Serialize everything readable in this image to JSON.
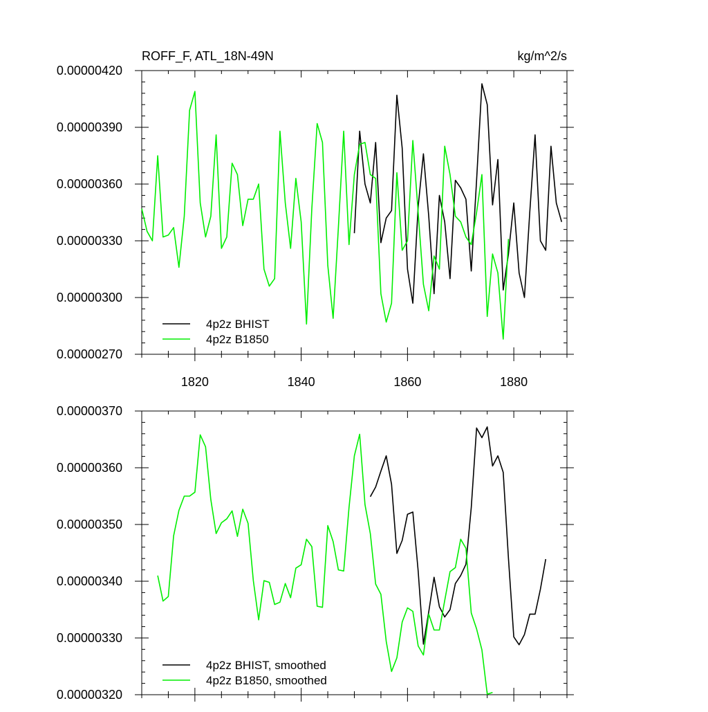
{
  "chart_data": [
    {
      "type": "line",
      "title": "ROFF_F, ATL_18N-49N",
      "title_right": "kg/m^2/s",
      "xlabel": "",
      "ylabel": "",
      "xlim": [
        1810,
        1890
      ],
      "ylim": [
        2.7e-06,
        4.2e-06
      ],
      "xticks": [
        1820,
        1840,
        1860,
        1880
      ],
      "xtick_labels": [
        "1820",
        "1840",
        "1860",
        "1880"
      ],
      "yticks": [
        2.7e-06,
        3e-06,
        3.3e-06,
        3.6e-06,
        3.9e-06,
        4.2e-06
      ],
      "ytick_labels": [
        "0.00000270",
        "0.00000300",
        "0.00000330",
        "0.00000360",
        "0.00000390",
        "0.00000420"
      ],
      "legend": "bottom-left",
      "grid": false,
      "series": [
        {
          "name": "4p2z BHIST",
          "color": "#000000",
          "x": [
            1850,
            1851,
            1852,
            1853,
            1854,
            1855,
            1856,
            1857,
            1858,
            1859,
            1860,
            1861,
            1862,
            1863,
            1864,
            1865,
            1866,
            1867,
            1868,
            1869,
            1870,
            1871,
            1872,
            1873,
            1874,
            1875,
            1876,
            1877,
            1878,
            1879,
            1880,
            1881,
            1882,
            1883,
            1884,
            1885,
            1886,
            1887,
            1888,
            1889
          ],
          "values": [
            3.34e-06,
            3.88e-06,
            3.6e-06,
            3.5e-06,
            3.82e-06,
            3.29e-06,
            3.42e-06,
            3.46e-06,
            4.07e-06,
            3.79e-06,
            3.15e-06,
            2.97e-06,
            3.48e-06,
            3.76e-06,
            3.43e-06,
            3.02e-06,
            3.54e-06,
            3.4e-06,
            3.1e-06,
            3.62e-06,
            3.58e-06,
            3.52e-06,
            3.14e-06,
            3.62e-06,
            4.13e-06,
            4.02e-06,
            3.49e-06,
            3.73e-06,
            3.04e-06,
            3.23e-06,
            3.5e-06,
            3.13e-06,
            3e-06,
            3.45e-06,
            3.86e-06,
            3.3e-06,
            3.25e-06,
            3.8e-06,
            3.5e-06,
            3.4e-06
          ]
        },
        {
          "name": "4p2z B1850",
          "color": "#00ee00",
          "x": [
            1810,
            1811,
            1812,
            1813,
            1814,
            1815,
            1816,
            1817,
            1818,
            1819,
            1820,
            1821,
            1822,
            1823,
            1824,
            1825,
            1826,
            1827,
            1828,
            1829,
            1830,
            1831,
            1832,
            1833,
            1834,
            1835,
            1836,
            1837,
            1838,
            1839,
            1840,
            1841,
            1842,
            1843,
            1844,
            1845,
            1846,
            1847,
            1848,
            1849,
            1850,
            1851,
            1852,
            1853,
            1854,
            1855,
            1856,
            1857,
            1858,
            1859,
            1860,
            1861,
            1862,
            1863,
            1864,
            1865,
            1866,
            1867,
            1868,
            1869,
            1870,
            1871,
            1872,
            1873,
            1874,
            1875,
            1876,
            1877,
            1878,
            1879
          ],
          "values": [
            3.47e-06,
            3.35e-06,
            3.3e-06,
            3.75e-06,
            3.32e-06,
            3.33e-06,
            3.37e-06,
            3.16e-06,
            3.43e-06,
            3.99e-06,
            4.09e-06,
            3.5e-06,
            3.32e-06,
            3.43e-06,
            3.86e-06,
            3.26e-06,
            3.32e-06,
            3.71e-06,
            3.65e-06,
            3.38e-06,
            3.52e-06,
            3.52e-06,
            3.6e-06,
            3.15e-06,
            3.06e-06,
            3.1e-06,
            3.88e-06,
            3.5e-06,
            3.26e-06,
            3.63e-06,
            3.4e-06,
            2.86e-06,
            3.47e-06,
            3.92e-06,
            3.82e-06,
            3.17e-06,
            2.89e-06,
            3.37e-06,
            3.88e-06,
            3.28e-06,
            3.65e-06,
            3.81e-06,
            3.82e-06,
            3.65e-06,
            3.63e-06,
            3.02e-06,
            2.87e-06,
            2.97e-06,
            3.66e-06,
            3.25e-06,
            3.3e-06,
            3.83e-06,
            3.45e-06,
            3.07e-06,
            2.93e-06,
            3.22e-06,
            3.15e-06,
            3.8e-06,
            3.65e-06,
            3.43e-06,
            3.4e-06,
            3.32e-06,
            3.28e-06,
            3.45e-06,
            3.65e-06,
            2.9e-06,
            3.23e-06,
            3.13e-06,
            2.78e-06,
            3.31e-06
          ]
        }
      ]
    },
    {
      "type": "line",
      "title": "",
      "xlabel": "",
      "ylabel": "",
      "xlim": [
        1810,
        1890
      ],
      "ylim": [
        3.2e-06,
        3.7e-06
      ],
      "yticks": [
        3.2e-06,
        3.3e-06,
        3.4e-06,
        3.5e-06,
        3.6e-06,
        3.7e-06
      ],
      "ytick_labels": [
        "0.00000320",
        "0.00000330",
        "0.00000340",
        "0.00000350",
        "0.00000360",
        "0.00000370"
      ],
      "legend": "bottom-left",
      "grid": false,
      "series": [
        {
          "name": "4p2z BHIST, smoothed",
          "color": "#000000",
          "x": [
            1853,
            1854,
            1855,
            1856,
            1857,
            1858,
            1859,
            1860,
            1861,
            1862,
            1863,
            1864,
            1865,
            1866,
            1867,
            1868,
            1869,
            1870,
            1871,
            1872,
            1873,
            1874,
            1875,
            1876,
            1877,
            1878,
            1879,
            1880,
            1881,
            1882,
            1883,
            1884,
            1885,
            1886
          ],
          "values": [
            3.549e-06,
            3.566e-06,
            3.594e-06,
            3.621e-06,
            3.571e-06,
            3.449e-06,
            3.472e-06,
            3.518e-06,
            3.522e-06,
            3.418e-06,
            3.289e-06,
            3.346e-06,
            3.407e-06,
            3.355e-06,
            3.337e-06,
            3.35e-06,
            3.396e-06,
            3.41e-06,
            3.43e-06,
            3.53e-06,
            3.67e-06,
            3.653e-06,
            3.672e-06,
            3.603e-06,
            3.621e-06,
            3.592e-06,
            3.44e-06,
            3.302e-06,
            3.288e-06,
            3.306e-06,
            3.342e-06,
            3.342e-06,
            3.386e-06,
            3.439e-06
          ]
        },
        {
          "name": "4p2z B1850, smoothed",
          "color": "#00ee00",
          "x": [
            1813,
            1814,
            1815,
            1816,
            1817,
            1818,
            1819,
            1820,
            1821,
            1822,
            1823,
            1824,
            1825,
            1826,
            1827,
            1828,
            1829,
            1830,
            1831,
            1832,
            1833,
            1834,
            1835,
            1836,
            1837,
            1838,
            1839,
            1840,
            1841,
            1842,
            1843,
            1844,
            1845,
            1846,
            1847,
            1848,
            1849,
            1850,
            1851,
            1852,
            1853,
            1854,
            1855,
            1856,
            1857,
            1858,
            1859,
            1860,
            1861,
            1862,
            1863,
            1864,
            1865,
            1866,
            1867,
            1868,
            1869,
            1870,
            1871,
            1872,
            1873,
            1874,
            1875,
            1876
          ],
          "values": [
            3.41e-06,
            3.365e-06,
            3.373e-06,
            3.48e-06,
            3.525e-06,
            3.55e-06,
            3.55e-06,
            3.557e-06,
            3.658e-06,
            3.637e-06,
            3.544e-06,
            3.484e-06,
            3.503e-06,
            3.51e-06,
            3.524e-06,
            3.479e-06,
            3.527e-06,
            3.502e-06,
            3.401e-06,
            3.332e-06,
            3.401e-06,
            3.398e-06,
            3.359e-06,
            3.363e-06,
            3.396e-06,
            3.371e-06,
            3.423e-06,
            3.429e-06,
            3.474e-06,
            3.461e-06,
            3.356e-06,
            3.354e-06,
            3.498e-06,
            3.47e-06,
            3.42e-06,
            3.418e-06,
            3.53e-06,
            3.621e-06,
            3.659e-06,
            3.535e-06,
            3.484e-06,
            3.395e-06,
            3.377e-06,
            3.294e-06,
            3.241e-06,
            3.265e-06,
            3.328e-06,
            3.353e-06,
            3.347e-06,
            3.286e-06,
            3.27e-06,
            3.342e-06,
            3.314e-06,
            3.314e-06,
            3.366e-06,
            3.417e-06,
            3.424e-06,
            3.474e-06,
            3.458e-06,
            3.344e-06,
            3.316e-06,
            3.279e-06,
            3.201e-06,
            3.204e-06
          ]
        }
      ]
    }
  ]
}
